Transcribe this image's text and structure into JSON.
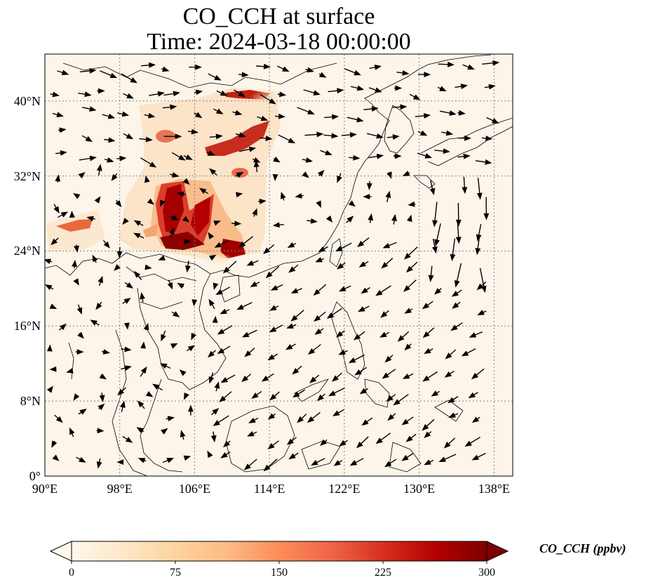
{
  "title": {
    "line1": "CO_CCH at surface",
    "line2": "Time: 2024-03-18 00:00:00"
  },
  "map": {
    "extent": {
      "lon_min": 90,
      "lon_max": 140,
      "lat_min": 0,
      "lat_max": 45
    },
    "projection": "PlateCarree",
    "gridlines": "dotted gray",
    "field_colormap": "OrRd",
    "vector_field": "wind (black arrows)",
    "x_ticks": [
      {
        "lon": 90,
        "label": "90°E"
      },
      {
        "lon": 98,
        "label": "98°E"
      },
      {
        "lon": 106,
        "label": "106°E"
      },
      {
        "lon": 114,
        "label": "114°E"
      },
      {
        "lon": 122,
        "label": "122°E"
      },
      {
        "lon": 130,
        "label": "130°E"
      },
      {
        "lon": 138,
        "label": "138°E"
      }
    ],
    "y_ticks": [
      {
        "lat": 0,
        "label": "0°"
      },
      {
        "lat": 8,
        "label": "8°N"
      },
      {
        "lat": 16,
        "label": "16°N"
      },
      {
        "lat": 24,
        "label": "24°N"
      },
      {
        "lat": 32,
        "label": "32°N"
      },
      {
        "lat": 40,
        "label": "40°N"
      }
    ]
  },
  "colorbar": {
    "label": "CO_CCH (ppbv)",
    "min": 0,
    "max": 300,
    "extend": "both",
    "ticks": [
      {
        "value": 0,
        "label": "0"
      },
      {
        "value": 75,
        "label": "75"
      },
      {
        "value": 150,
        "label": "150"
      },
      {
        "value": 225,
        "label": "225"
      },
      {
        "value": 300,
        "label": "300"
      }
    ],
    "colors": [
      "#fff7ec",
      "#fee8c8",
      "#fdd49e",
      "#fdbb84",
      "#fc8d59",
      "#ef6548",
      "#d7301f",
      "#b30000",
      "#7f0000"
    ]
  },
  "colors": {
    "coast": "#000000",
    "grid": "#808080",
    "background": "#fdf5ea"
  }
}
